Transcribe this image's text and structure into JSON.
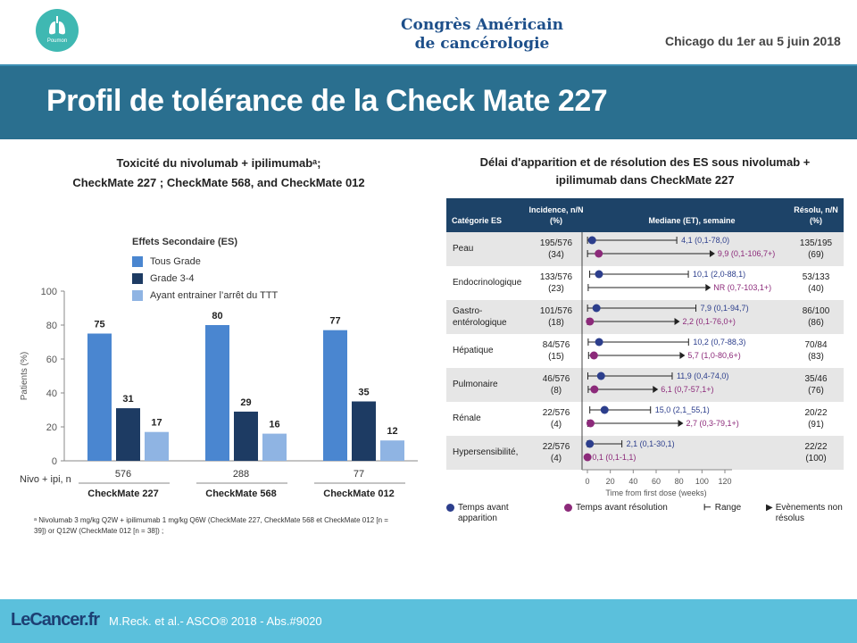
{
  "header": {
    "logo_label": "Poumon",
    "congress_line1": "Congrès Américain",
    "congress_line2": "de cancérologie",
    "dates": "Chicago du 1er au 5 juin 2018"
  },
  "title": "Profil de tolérance de la Check Mate 227",
  "left": {
    "title_line1": "Toxicité du nivolumab + ipilimumabᵃ;",
    "title_line2": "CheckMate 227 ; CheckMate 568, and CheckMate 012",
    "footnote": "ᵃ Nivolumab 3 mg/kg Q2W + ipilimumab 1 mg/kg Q6W (CheckMate 227, CheckMate 568 et CheckMate 012 [n = 39]) or Q12W (CheckMate 012 [n = 38]) ;"
  },
  "chart_data": {
    "type": "bar",
    "categories": [
      "CheckMate 227",
      "CheckMate 568",
      "CheckMate 012"
    ],
    "n_label": "Nivo + ipi, n",
    "n_values": [
      "576",
      "288",
      "77"
    ],
    "legend_title": "Effets Secondaire (ES)",
    "series": [
      {
        "name": "Tous Grade",
        "values": [
          75,
          80,
          77
        ],
        "color": "#4a86d0"
      },
      {
        "name": "Grade 3-4",
        "values": [
          31,
          29,
          35
        ],
        "color": "#1d3b63"
      },
      {
        "name": "Ayant entrainer l’arrêt du TTT",
        "values": [
          17,
          16,
          12
        ],
        "color": "#8fb4e3"
      }
    ],
    "ylabel": "Patients (%)",
    "ylim": [
      0,
      100
    ],
    "yticks": [
      0,
      20,
      40,
      60,
      80,
      100
    ],
    "grid": false
  },
  "right": {
    "title_line1": "Délai d'apparition et de résolution des ES sous nivolumab +",
    "title_line2": "ipilimumab dans CheckMate 227",
    "head_cat": "Catégorie ES",
    "head_inc": "Incidence, n/N (%)",
    "head_med": "Mediane (ET), semaine",
    "head_res": "Résolu, n/N (%)",
    "xlabel": "Time from first dose (weeks)",
    "xticks": [
      "0",
      "20",
      "40",
      "60",
      "80",
      "100",
      "120"
    ],
    "xlim": [
      0,
      120
    ],
    "colors": {
      "onset": "#2c3e8c",
      "resolution": "#8c2a7a",
      "header": "#1d4368"
    },
    "rows": [
      {
        "category": "Peau",
        "incidence": "195/576",
        "incidence_pct": "(34)",
        "onset_label": "4,1 (0,1-78,0)",
        "onset": 4.1,
        "onset_range": [
          0.1,
          78.0
        ],
        "res_label": "9,9 (0,1-106,7+)",
        "res": 9.9,
        "res_range": [
          0.1,
          106.7
        ],
        "res_arrow": true,
        "resolved": "135/195",
        "resolved_pct": "(69)"
      },
      {
        "category": "Endocrinologique",
        "incidence": "133/576",
        "incidence_pct": "(23)",
        "onset_label": "10,1 (2,0-88,1)",
        "onset": 10.1,
        "onset_range": [
          2.0,
          88.1
        ],
        "res_label": "NR (0,7-103,1+)",
        "res": null,
        "res_range": [
          0.7,
          103.1
        ],
        "res_arrow": true,
        "resolved": "53/133",
        "resolved_pct": "(40)"
      },
      {
        "category": "Gastro-entérologique",
        "incidence": "101/576",
        "incidence_pct": "(18)",
        "onset_label": "7,9 (0,1-94,7)",
        "onset": 7.9,
        "onset_range": [
          0.1,
          94.7
        ],
        "res_label": "2,2 (0,1-76,0+)",
        "res": 2.2,
        "res_range": [
          0.1,
          76.0
        ],
        "res_arrow": true,
        "resolved": "86/100",
        "resolved_pct": "(86)"
      },
      {
        "category": "Hépatique",
        "incidence": "84/576",
        "incidence_pct": "(15)",
        "onset_label": "10,2 (0,7-88,3)",
        "onset": 10.2,
        "onset_range": [
          0.7,
          88.3
        ],
        "res_label": "5,7 (1,0-80,6+)",
        "res": 5.7,
        "res_range": [
          1.0,
          80.6
        ],
        "res_arrow": true,
        "resolved": "70/84",
        "resolved_pct": "(83)"
      },
      {
        "category": "Pulmonaire",
        "incidence": "46/576",
        "incidence_pct": "(8)",
        "onset_label": "11,9 (0,4-74,0)",
        "onset": 11.9,
        "onset_range": [
          0.4,
          74.0
        ],
        "res_label": "6,1 (0,7-57,1+)",
        "res": 6.1,
        "res_range": [
          0.7,
          57.1
        ],
        "res_arrow": true,
        "resolved": "35/46",
        "resolved_pct": "(76)"
      },
      {
        "category": "Rénale",
        "incidence": "22/576",
        "incidence_pct": "(4)",
        "onset_label": "15,0 (2,1_55,1)",
        "onset": 15.0,
        "onset_range": [
          2.1,
          55.1
        ],
        "res_label": "2,7 (0,3-79,1+)",
        "res": 2.7,
        "res_range": [
          0.3,
          79.1
        ],
        "res_arrow": true,
        "resolved": "20/22",
        "resolved_pct": "(91)"
      },
      {
        "category": "Hypersensibilité,",
        "incidence": "22/576",
        "incidence_pct": "(4)",
        "onset_label": "2,1 (0,1-30,1)",
        "onset": 2.1,
        "onset_range": [
          0.1,
          30.1
        ],
        "res_label": "0,1 (0,1-1,1)",
        "res": 0.1,
        "res_range": [
          0.1,
          1.1
        ],
        "res_arrow": false,
        "resolved": "22/22",
        "resolved_pct": "(100)"
      }
    ],
    "legend": {
      "onset": "Temps avant apparition",
      "resolution": "Temps avant résolution",
      "range": "Range",
      "unresolved": "Evènements non résolus"
    }
  },
  "footer": {
    "brand": "LeCancer.fr",
    "reference": "M.Reck. et al.- ASCO® 2018 - Abs.#9020"
  }
}
